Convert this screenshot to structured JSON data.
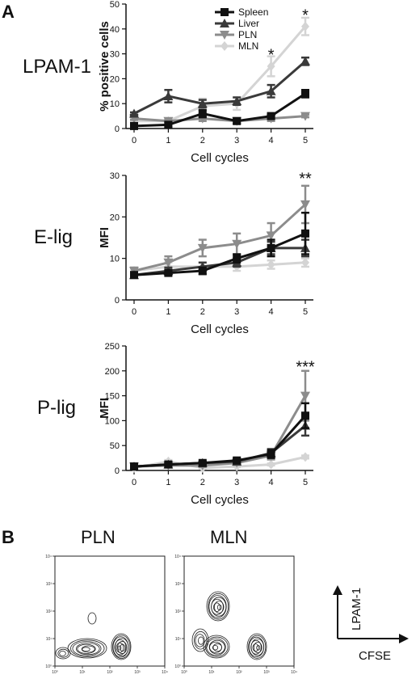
{
  "panels": {
    "a": "A",
    "b": "B"
  },
  "chart_data": [
    {
      "type": "line",
      "id": "lpam",
      "row_label": "LPAM-1",
      "title": "",
      "xlabel": "Cell cycles",
      "ylabel": "% positive cells",
      "x": [
        0,
        1,
        2,
        3,
        4,
        5
      ],
      "xlim": [
        0,
        5
      ],
      "ylim": [
        0,
        50
      ],
      "yticks": [
        0,
        10,
        20,
        30,
        40,
        50
      ],
      "legend": "top-left",
      "series": [
        {
          "name": "Spleen",
          "color": "#111111",
          "marker": "square",
          "values": [
            1,
            1.5,
            6,
            3,
            5,
            14
          ],
          "errors": [
            0.5,
            1,
            1.5,
            1,
            1,
            1.5
          ]
        },
        {
          "name": "Liver",
          "color": "#3a3a3a",
          "marker": "triangle-up",
          "values": [
            6,
            13,
            10,
            11,
            15,
            27
          ],
          "errors": [
            0.5,
            2.5,
            1.5,
            1.5,
            2.5,
            1.5
          ]
        },
        {
          "name": "PLN",
          "color": "#8c8c8c",
          "marker": "triangle-down",
          "values": [
            4,
            3,
            4,
            3,
            4,
            5
          ],
          "errors": [
            0.5,
            0.5,
            1,
            1,
            1,
            0.5
          ]
        },
        {
          "name": "MLN",
          "color": "#d4d4d4",
          "marker": "diamond",
          "values": [
            3,
            3,
            9,
            10,
            25,
            41
          ],
          "errors": [
            0.5,
            1,
            3,
            2.5,
            4,
            3.5
          ]
        }
      ],
      "annotations": [
        {
          "x": 4,
          "y": 30,
          "text": "*"
        },
        {
          "x": 5,
          "y": 46,
          "text": "*"
        }
      ]
    },
    {
      "type": "line",
      "id": "elig",
      "row_label": "E-lig",
      "title": "",
      "xlabel": "Cell cycles",
      "ylabel": "MFI",
      "x": [
        0,
        1,
        2,
        3,
        4,
        5
      ],
      "xlim": [
        0,
        5
      ],
      "ylim": [
        0,
        30
      ],
      "yticks": [
        0,
        10,
        20,
        30
      ],
      "series": [
        {
          "name": "Spleen",
          "color": "#111111",
          "marker": "square",
          "values": [
            6,
            6.5,
            7,
            10,
            12.5,
            16
          ],
          "errors": [
            0.5,
            0.5,
            0.8,
            1,
            2,
            5
          ]
        },
        {
          "name": "Liver",
          "color": "#3a3a3a",
          "marker": "triangle-up",
          "values": [
            6,
            7,
            8,
            9,
            12.5,
            12.5
          ],
          "errors": [
            0.5,
            0.8,
            1,
            1,
            1.5,
            2
          ]
        },
        {
          "name": "PLN",
          "color": "#8c8c8c",
          "marker": "triangle-down",
          "values": [
            7,
            9,
            12.5,
            13.5,
            15.5,
            23
          ],
          "errors": [
            0.8,
            1.5,
            2,
            2.5,
            3,
            4.5
          ]
        },
        {
          "name": "MLN",
          "color": "#d4d4d4",
          "marker": "diamond",
          "values": [
            7,
            8,
            8,
            8,
            8.5,
            9
          ],
          "errors": [
            0.5,
            1,
            1,
            1,
            1,
            1
          ]
        }
      ],
      "annotations": [
        {
          "x": 5,
          "y": 29.5,
          "text": "**"
        }
      ]
    },
    {
      "type": "line",
      "id": "plig",
      "row_label": "P-lig",
      "title": "",
      "xlabel": "Cell cycles",
      "ylabel": "MFI",
      "x": [
        0,
        1,
        2,
        3,
        4,
        5
      ],
      "xlim": [
        0,
        5
      ],
      "ylim": [
        0,
        250
      ],
      "yticks": [
        0,
        50,
        100,
        150,
        200,
        250
      ],
      "series": [
        {
          "name": "Spleen",
          "color": "#111111",
          "marker": "square",
          "values": [
            8,
            12,
            15,
            20,
            33,
            110
          ],
          "errors": [
            2,
            3,
            3,
            4,
            8,
            25
          ]
        },
        {
          "name": "Liver",
          "color": "#3a3a3a",
          "marker": "triangle-up",
          "values": [
            8,
            12,
            15,
            18,
            35,
            90
          ],
          "errors": [
            2,
            3,
            3,
            4,
            8,
            20
          ]
        },
        {
          "name": "PLN",
          "color": "#8c8c8c",
          "marker": "triangle-down",
          "values": [
            8,
            10,
            10,
            15,
            30,
            150
          ],
          "errors": [
            2,
            3,
            3,
            4,
            8,
            50
          ]
        },
        {
          "name": "MLN",
          "color": "#d4d4d4",
          "marker": "diamond",
          "values": [
            5,
            18,
            5,
            8,
            12,
            27
          ],
          "errors": [
            1,
            3,
            1,
            1,
            2,
            3
          ]
        }
      ],
      "annotations": [
        {
          "x": 5,
          "y": 210,
          "text": "***"
        }
      ]
    }
  ],
  "flow": {
    "plots": [
      {
        "label": "PLN"
      },
      {
        "label": "MLN"
      }
    ],
    "xticks": [
      "10⁰",
      "10¹",
      "10²",
      "10³",
      "10⁴"
    ],
    "yticks": [
      "10⁰",
      "10¹",
      "10²",
      "10³",
      "10⁴"
    ],
    "axis_key": {
      "y": "LPAM-1",
      "x": "CFSE"
    }
  }
}
